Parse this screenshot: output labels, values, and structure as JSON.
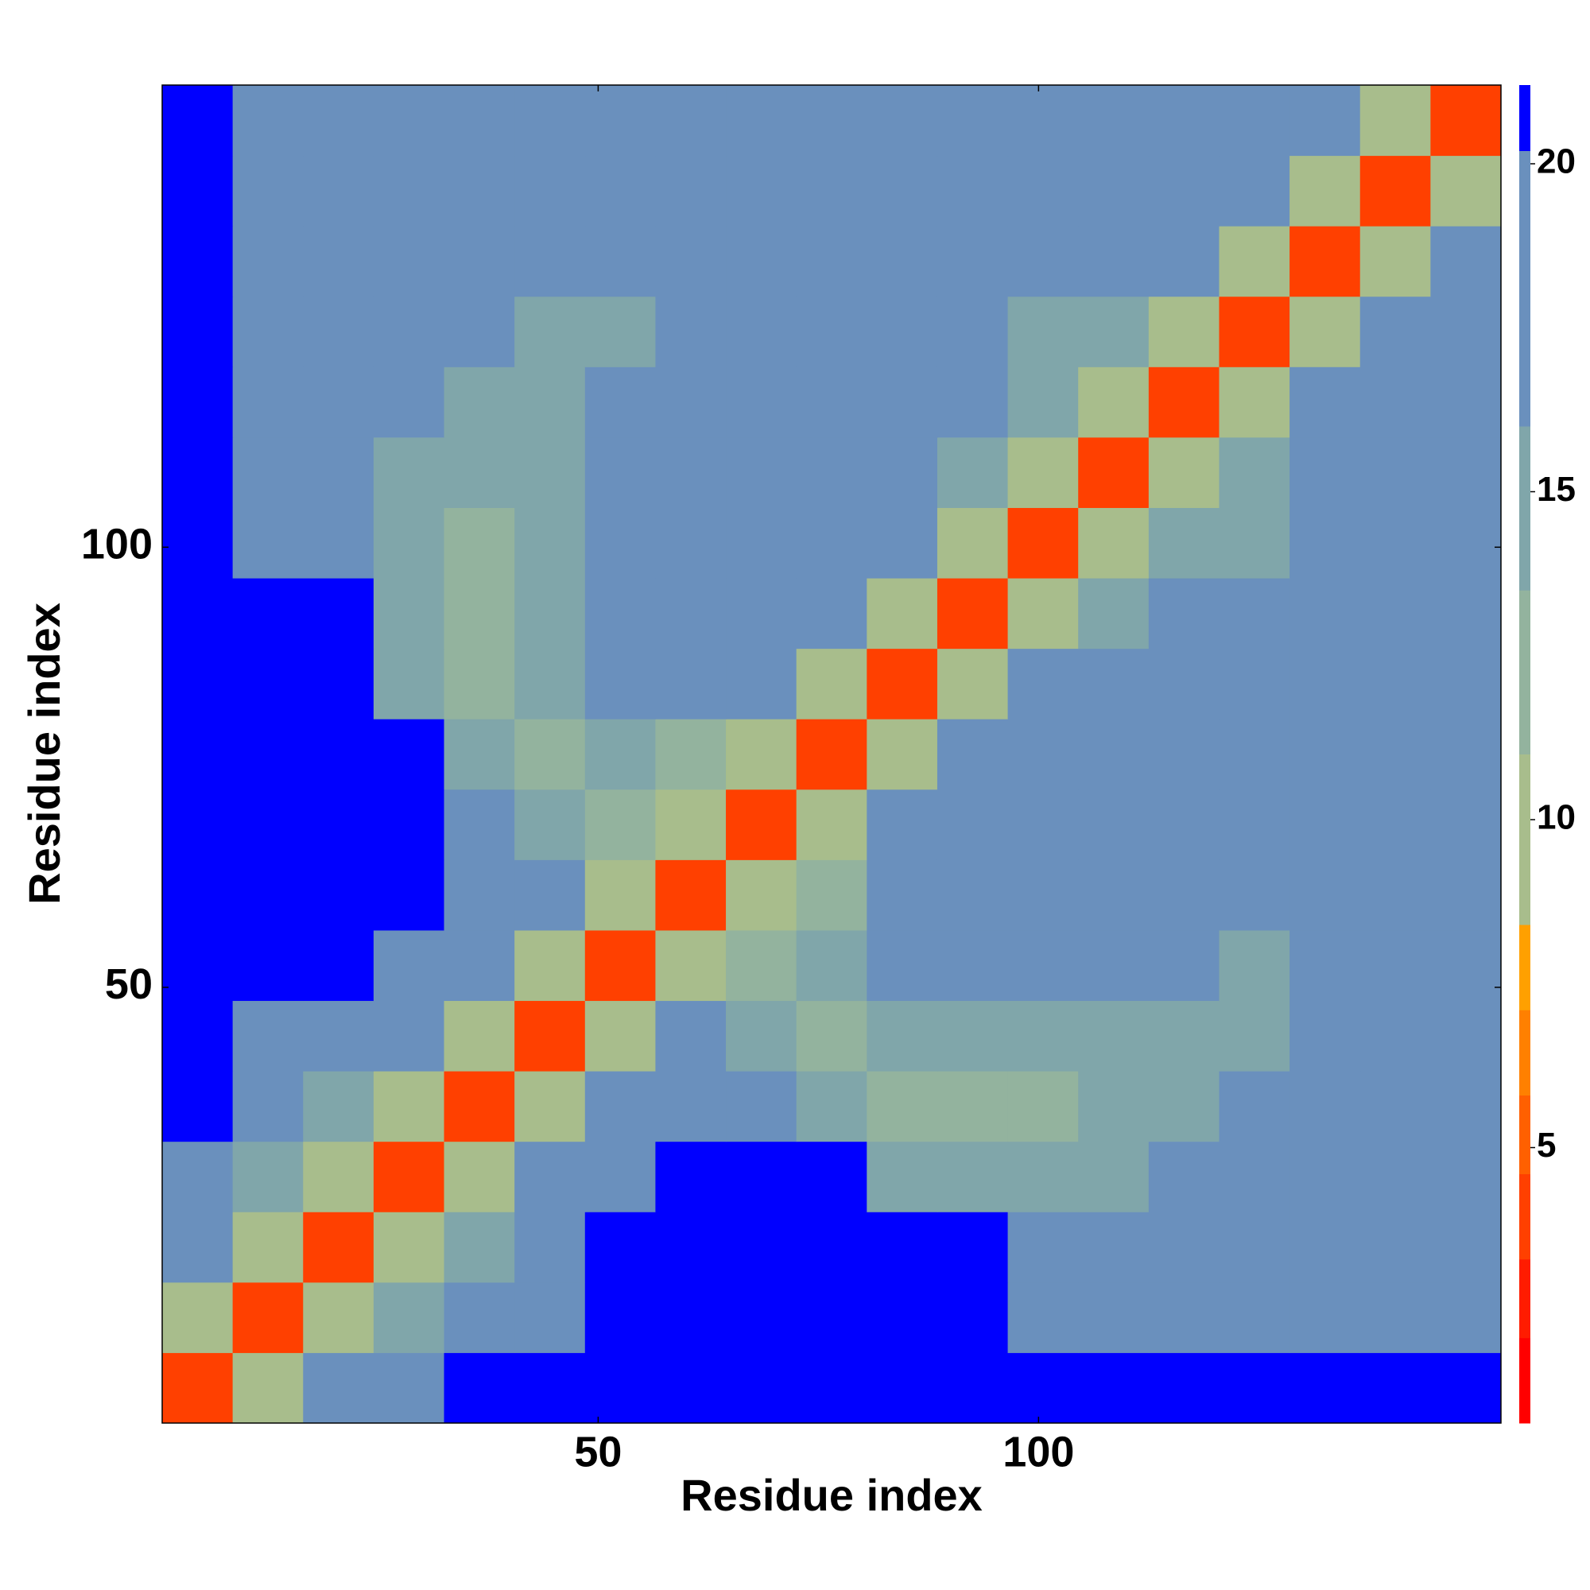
{
  "chart_data": {
    "type": "heatmap",
    "x_label": "Residue index",
    "y_label": "Residue index",
    "xbins": [
      0.5,
      8.5,
      16.5,
      24.5,
      32.5,
      40.5,
      48.5,
      56.5,
      64.5,
      72.5,
      80.5,
      88.5,
      96.5,
      104.5,
      112.5,
      120.5,
      128.5,
      136.5,
      144.5,
      152.5
    ],
    "ybins": [
      0.5,
      8.5,
      16.5,
      24.5,
      32.5,
      40.5,
      48.5,
      56.5,
      64.5,
      72.5,
      80.5,
      88.5,
      96.5,
      104.5,
      112.5,
      120.5,
      128.5,
      136.5,
      144.5,
      152.5
    ],
    "xlim": [
      0.5,
      152.5
    ],
    "ylim": [
      0.5,
      152.5
    ],
    "xticks": [
      50,
      100
    ],
    "yticks": [
      50,
      100
    ],
    "clim": [
      0.8,
      21.2
    ],
    "cticks": [
      5,
      10,
      15,
      20
    ],
    "color_stops": [
      {
        "value": 0.8,
        "color": "#ff0000"
      },
      {
        "value": 2.1,
        "color": "#ff1c00"
      },
      {
        "value": 3.3,
        "color": "#ff4000"
      },
      {
        "value": 4.6,
        "color": "#ff6000"
      },
      {
        "value": 5.8,
        "color": "#ff8000"
      },
      {
        "value": 7.1,
        "color": "#ffa000"
      },
      {
        "value": 8.4,
        "color": "#a8bd8c"
      },
      {
        "value": 11,
        "color": "#93b39e"
      },
      {
        "value": 13.5,
        "color": "#80a6aa"
      },
      {
        "value": 16,
        "color": "#6a90bd"
      },
      {
        "value": 20.2,
        "color": "#0000ff"
      }
    ],
    "values": [
      [
        4,
        10,
        17,
        19,
        21,
        21,
        21,
        21,
        21,
        21,
        21,
        21,
        21,
        21,
        21,
        21,
        21,
        21,
        21
      ],
      [
        10,
        4,
        10,
        15,
        16,
        19,
        21,
        21,
        21,
        21,
        21,
        21,
        18,
        20,
        20,
        20,
        20,
        18,
        18
      ],
      [
        17,
        10,
        4,
        10,
        14,
        17,
        21,
        21,
        21,
        21,
        21,
        21,
        16,
        17,
        19,
        19,
        18,
        17,
        18
      ],
      [
        19,
        15,
        10,
        4,
        10,
        17,
        20,
        21,
        21,
        21,
        15,
        15,
        14,
        15,
        16,
        17,
        17,
        18,
        19
      ],
      [
        21,
        16,
        14,
        10,
        4,
        10,
        17,
        19,
        18,
        15,
        13,
        13,
        13,
        14,
        15,
        16,
        17,
        19,
        20
      ],
      [
        21,
        19,
        17,
        17,
        10,
        4,
        10,
        16,
        14,
        13,
        14,
        14,
        15,
        15,
        15,
        15,
        16,
        18,
        20
      ],
      [
        21,
        21,
        21,
        20,
        17,
        10,
        4,
        10,
        12,
        14,
        16,
        18,
        19,
        19,
        16,
        15,
        18,
        19,
        19
      ],
      [
        21,
        21,
        21,
        21,
        19,
        16,
        10,
        4,
        10,
        13,
        20,
        20,
        20,
        20,
        18,
        16,
        18,
        18,
        18
      ],
      [
        21,
        21,
        21,
        21,
        18,
        14,
        12,
        10,
        4,
        10,
        17,
        19,
        19,
        18,
        17,
        17,
        17,
        17,
        17
      ],
      [
        21,
        21,
        21,
        21,
        15,
        13,
        14,
        13,
        10,
        4,
        10,
        16,
        19,
        18,
        17,
        18,
        18,
        17,
        17
      ],
      [
        21,
        21,
        21,
        15,
        13,
        14,
        16,
        20,
        17,
        10,
        4,
        10,
        16,
        17,
        18,
        17,
        17,
        18,
        18
      ],
      [
        21,
        21,
        21,
        15,
        13,
        14,
        18,
        20,
        19,
        16,
        10,
        4,
        10,
        15,
        16,
        16,
        16,
        17,
        17
      ],
      [
        21,
        18,
        16,
        14,
        13,
        15,
        19,
        20,
        19,
        19,
        16,
        10,
        4,
        10,
        14,
        15,
        16,
        16,
        17
      ],
      [
        21,
        20,
        17,
        15,
        14,
        15,
        19,
        20,
        18,
        18,
        17,
        15,
        10,
        4,
        10,
        15,
        16,
        17,
        17
      ],
      [
        21,
        20,
        19,
        16,
        15,
        15,
        16,
        18,
        17,
        17,
        18,
        16,
        14,
        10,
        4,
        10,
        17,
        16,
        17
      ],
      [
        21,
        20,
        19,
        17,
        16,
        15,
        15,
        16,
        17,
        18,
        17,
        16,
        15,
        15,
        10,
        4,
        10,
        17,
        16
      ],
      [
        21,
        20,
        18,
        17,
        17,
        16,
        18,
        18,
        17,
        18,
        17,
        16,
        16,
        16,
        17,
        10,
        4,
        10,
        16
      ],
      [
        21,
        18,
        17,
        18,
        19,
        18,
        19,
        18,
        17,
        17,
        18,
        17,
        16,
        17,
        16,
        17,
        10,
        4,
        10
      ],
      [
        21,
        18,
        18,
        19,
        20,
        20,
        19,
        18,
        17,
        17,
        18,
        17,
        17,
        17,
        17,
        16,
        16,
        10,
        4
      ]
    ]
  }
}
